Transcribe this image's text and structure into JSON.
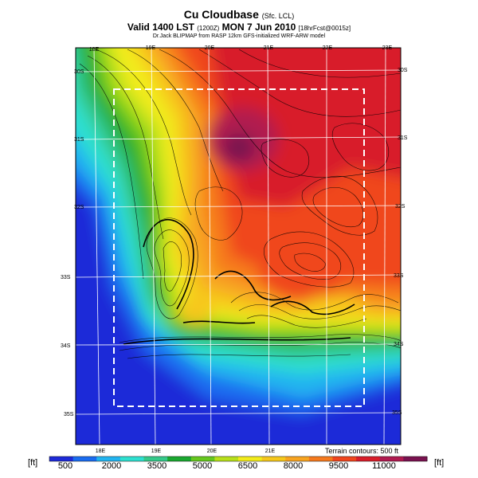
{
  "title": {
    "main": "Cu Cloudbase",
    "main_suffix": "(Sfc. LCL)",
    "valid": "Valid 1400 LST",
    "valid_code": "(1200Z)",
    "date": "MON 7 Jun 2010",
    "forecast": "[18hrFcst@0015z]",
    "credit": "Dr.Jack BLIPMAP from RASP 12km GFS-initialized WRF-ARW model"
  },
  "map": {
    "lon_labels_top": [
      "18E",
      "19E",
      "20E",
      "21E",
      "22E",
      "23E"
    ],
    "lon_labels_bottom": [
      "18E",
      "19E",
      "20E",
      "21E"
    ],
    "lat_labels_left": [
      "30S",
      "31S",
      "32S",
      "33S",
      "34S",
      "35S"
    ],
    "lat_labels_right": [
      "30S",
      "31S",
      "32S",
      "33S",
      "34S",
      "35S"
    ],
    "terrain_note": "Terrain contours: 500 ft"
  },
  "colorbar": {
    "unit_left": "[ft]",
    "unit_right": "[ft]",
    "tick_labels": [
      "500",
      "2000",
      "3500",
      "5000",
      "6500",
      "8000",
      "9500",
      "11000"
    ],
    "colors": [
      "#1e2ad8",
      "#1a6cf0",
      "#22b4f0",
      "#2ee0d0",
      "#35c98a",
      "#1aa830",
      "#66c81e",
      "#b8e01a",
      "#f2ec1a",
      "#f6c81c",
      "#f8a420",
      "#f67a1e",
      "#f0461e",
      "#d81e2a",
      "#b01a50",
      "#7a1250"
    ]
  }
}
